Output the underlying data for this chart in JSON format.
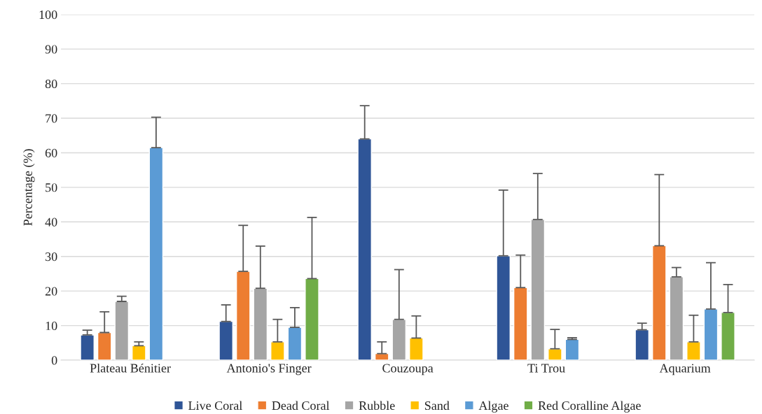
{
  "chart_data": {
    "type": "bar",
    "ylabel": "Percentage (%)",
    "categories": [
      "Plateau Bénitier",
      "Antonio's Finger",
      "Couzoupa",
      "Ti Trou",
      "Aquarium"
    ],
    "series": [
      {
        "name": "Live Coral",
        "color": "#2f5597",
        "values": [
          7.3,
          11.2,
          64,
          30.2,
          8.8
        ],
        "errors": [
          [
            7.3,
            8.7
          ],
          [
            11.2,
            16
          ],
          [
            64,
            73.6
          ],
          [
            30.2,
            49.2
          ],
          [
            8.8,
            10.7
          ]
        ]
      },
      {
        "name": "Dead Coral",
        "color": "#ed7d31",
        "values": [
          8,
          25.7,
          1.9,
          21,
          33.1
        ],
        "errors": [
          [
            8,
            14
          ],
          [
            25.7,
            39
          ],
          [
            1.9,
            5.3
          ],
          [
            21,
            30.4
          ],
          [
            33.1,
            53.7
          ]
        ]
      },
      {
        "name": "Rubble",
        "color": "#a5a5a5",
        "values": [
          17,
          20.8,
          11.8,
          40.7,
          24.1
        ],
        "errors": [
          [
            17,
            18.5
          ],
          [
            20.8,
            33
          ],
          [
            11.8,
            26.2
          ],
          [
            40.7,
            54
          ],
          [
            24.1,
            26.8
          ]
        ]
      },
      {
        "name": "Sand",
        "color": "#ffc000",
        "values": [
          4.2,
          5.3,
          6.4,
          3.3,
          5.3
        ],
        "errors": [
          [
            4.2,
            5.3
          ],
          [
            5.3,
            11.8
          ],
          [
            6.4,
            12.8
          ],
          [
            3.3,
            8.9
          ],
          [
            5.3,
            13
          ]
        ]
      },
      {
        "name": "Algae",
        "color": "#5b9bd5",
        "values": [
          61.5,
          9.5,
          null,
          6,
          14.8
        ],
        "errors": [
          [
            61.5,
            70.3
          ],
          [
            9.5,
            15.2
          ],
          null,
          [
            6,
            6.5
          ],
          [
            14.8,
            28.2
          ]
        ]
      },
      {
        "name": "Red Coralline Algae",
        "color": "#70ad47",
        "values": [
          null,
          23.6,
          null,
          null,
          13.8
        ],
        "errors": [
          null,
          [
            23.6,
            41.3
          ],
          null,
          null,
          [
            13.8,
            21.9
          ]
        ]
      }
    ],
    "ylim": [
      0,
      100
    ],
    "yticks": [
      0,
      10,
      20,
      30,
      40,
      50,
      60,
      70,
      80,
      90,
      100
    ],
    "grid": "y",
    "legend": "bottom"
  }
}
